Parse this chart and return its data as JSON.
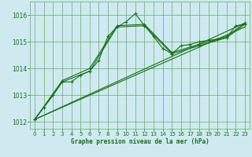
{
  "bg_color": "#ceeaf0",
  "grid_color": "#66aa66",
  "line_color": "#1a6e1a",
  "title": "Graphe pression niveau de la mer (hPa)",
  "xlim": [
    -0.5,
    23.5
  ],
  "ylim": [
    1011.75,
    1016.5
  ],
  "yticks": [
    1012,
    1013,
    1014,
    1015,
    1016
  ],
  "xticks": [
    0,
    1,
    2,
    3,
    4,
    5,
    6,
    7,
    8,
    9,
    10,
    11,
    12,
    13,
    14,
    15,
    16,
    17,
    18,
    19,
    20,
    21,
    22,
    23
  ],
  "series1_x": [
    0,
    1,
    2,
    3,
    4,
    5,
    6,
    7,
    8,
    9,
    10,
    11,
    12,
    13,
    14,
    15,
    16,
    17,
    18,
    19,
    20,
    21,
    22,
    23
  ],
  "series1_y": [
    1012.1,
    1012.55,
    1013.0,
    1013.5,
    1013.5,
    1013.75,
    1013.9,
    1014.3,
    1015.2,
    1015.55,
    1015.75,
    1016.05,
    1015.6,
    1015.2,
    1014.75,
    1014.55,
    1014.85,
    1014.9,
    1015.0,
    1015.05,
    1015.1,
    1015.15,
    1015.6,
    1015.65
  ],
  "series2_x": [
    0,
    3,
    6,
    9,
    12,
    15,
    18,
    21,
    23
  ],
  "series2_y": [
    1012.1,
    1013.5,
    1013.9,
    1015.55,
    1015.6,
    1014.55,
    1014.85,
    1015.15,
    1015.65
  ],
  "series3_x": [
    0,
    3,
    6,
    9,
    12,
    15,
    18,
    21,
    23
  ],
  "series3_y": [
    1012.1,
    1013.55,
    1014.0,
    1015.6,
    1015.65,
    1014.6,
    1014.9,
    1015.2,
    1015.7
  ],
  "series4_x": [
    0,
    23
  ],
  "series4_y": [
    1012.1,
    1015.55
  ],
  "series5_x": [
    0,
    23
  ],
  "series5_y": [
    1012.1,
    1015.7
  ]
}
